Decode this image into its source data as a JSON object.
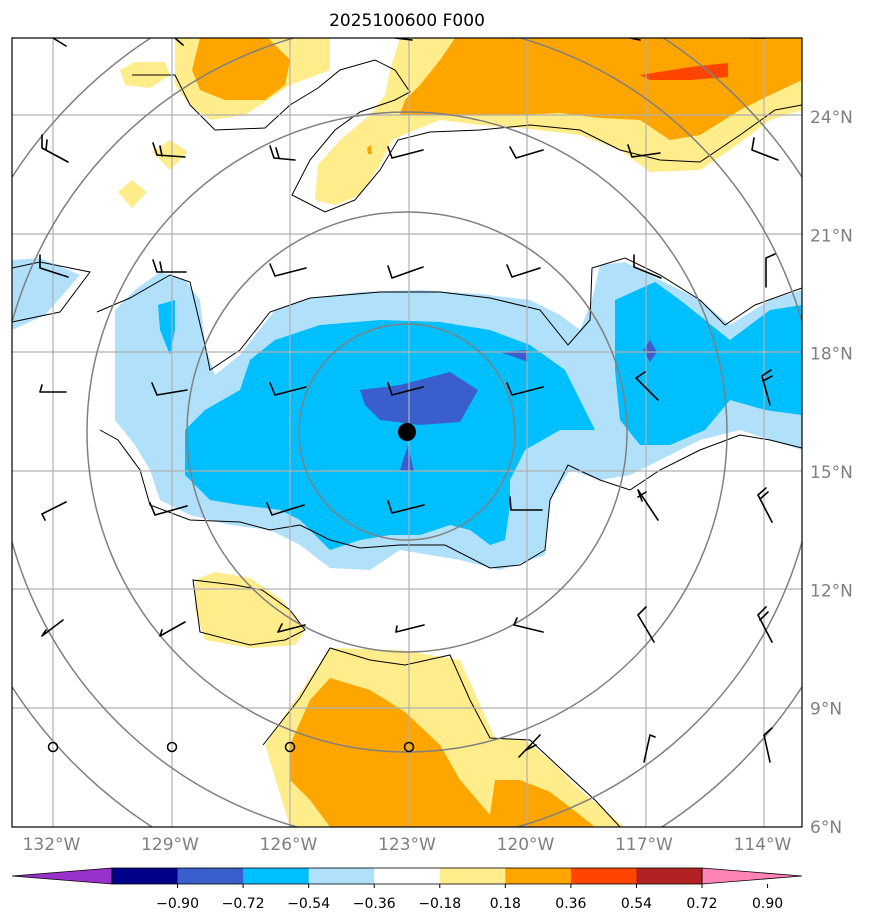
{
  "chart_data": {
    "type": "contour_map",
    "title": "2025100600 F000",
    "x_ticks": [
      "132°W",
      "129°W",
      "126°W",
      "123°W",
      "120°W",
      "117°W",
      "114°W"
    ],
    "x_tick_values": [
      -132,
      -129,
      -126,
      -123,
      -120,
      -117,
      -114
    ],
    "y_ticks": [
      "24°N",
      "21°N",
      "18°N",
      "15°N",
      "12°N",
      "9°N",
      "6°N"
    ],
    "y_tick_values": [
      24,
      21,
      18,
      15,
      12,
      9,
      6
    ],
    "xlim": [
      -133,
      -113
    ],
    "ylim": [
      6,
      26
    ],
    "grid": true,
    "center": {
      "lon": -123.0,
      "lat": 16.0
    },
    "range_rings_deg": [
      2,
      4,
      6,
      8,
      10
    ],
    "colorbar": {
      "orientation": "horizontal",
      "extend": "both",
      "levels": [
        "−0.90",
        "−0.72",
        "−0.54",
        "−0.36",
        "−0.18",
        "0.18",
        "0.36",
        "0.54",
        "0.72",
        "0.90"
      ],
      "colors": [
        "#9932cc",
        "#00008b",
        "#3a5fcd",
        "#00bfff",
        "#b0e0fa",
        "#ffffff",
        "#ffec8b",
        "#ffa500",
        "#ff4500",
        "#b22222",
        "#ff83b5"
      ]
    },
    "fill_regions": [
      {
        "level": "negative_light",
        "color": "#b0e0fa"
      },
      {
        "level": "negative_mid",
        "color": "#00bfff"
      },
      {
        "level": "negative_dark",
        "color": "#3a5fcd"
      },
      {
        "level": "positive_light",
        "color": "#ffec8b"
      },
      {
        "level": "positive_mid",
        "color": "#ffa500"
      },
      {
        "level": "positive_high",
        "color": "#ff4500"
      }
    ],
    "wind_barb_count": 49,
    "calm_station_count": 4
  }
}
